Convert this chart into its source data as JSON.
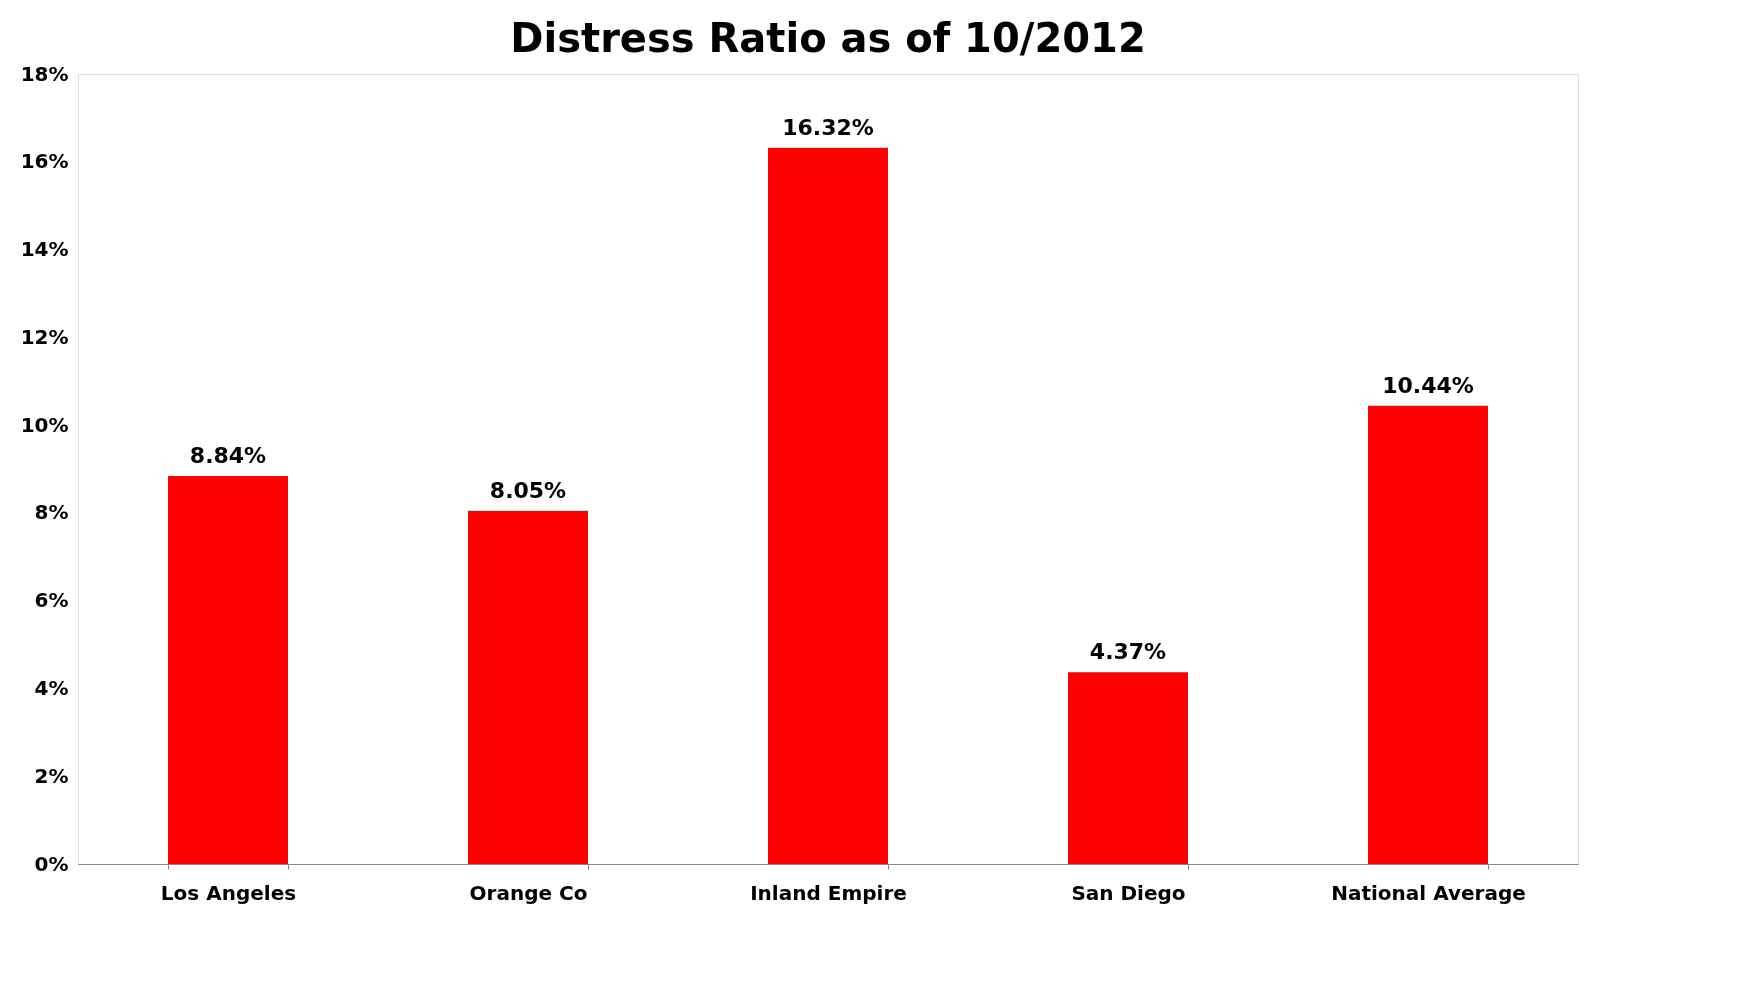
{
  "chart_data": {
    "type": "bar",
    "title": "Distress Ratio as of 10/2012",
    "categories": [
      "Los Angeles",
      "Orange Co",
      "Inland Empire",
      "San Diego",
      "National Average"
    ],
    "values": [
      8.84,
      8.05,
      16.32,
      4.37,
      10.44
    ],
    "value_labels": [
      "8.84%",
      "8.05%",
      "16.32%",
      "4.37%",
      "10.44%"
    ],
    "color": "#ff0000",
    "ylim": [
      0,
      18
    ],
    "yticks": [
      {
        "value": 0,
        "label": "0%"
      },
      {
        "value": 2,
        "label": "2%"
      },
      {
        "value": 4,
        "label": "4%"
      },
      {
        "value": 6,
        "label": "6%"
      },
      {
        "value": 8,
        "label": "8%"
      },
      {
        "value": 10,
        "label": "10%"
      },
      {
        "value": 12,
        "label": "12%"
      },
      {
        "value": 14,
        "label": "14%"
      },
      {
        "value": 16,
        "label": "16%"
      },
      {
        "value": 18,
        "label": "18%"
      }
    ],
    "grid": false
  }
}
